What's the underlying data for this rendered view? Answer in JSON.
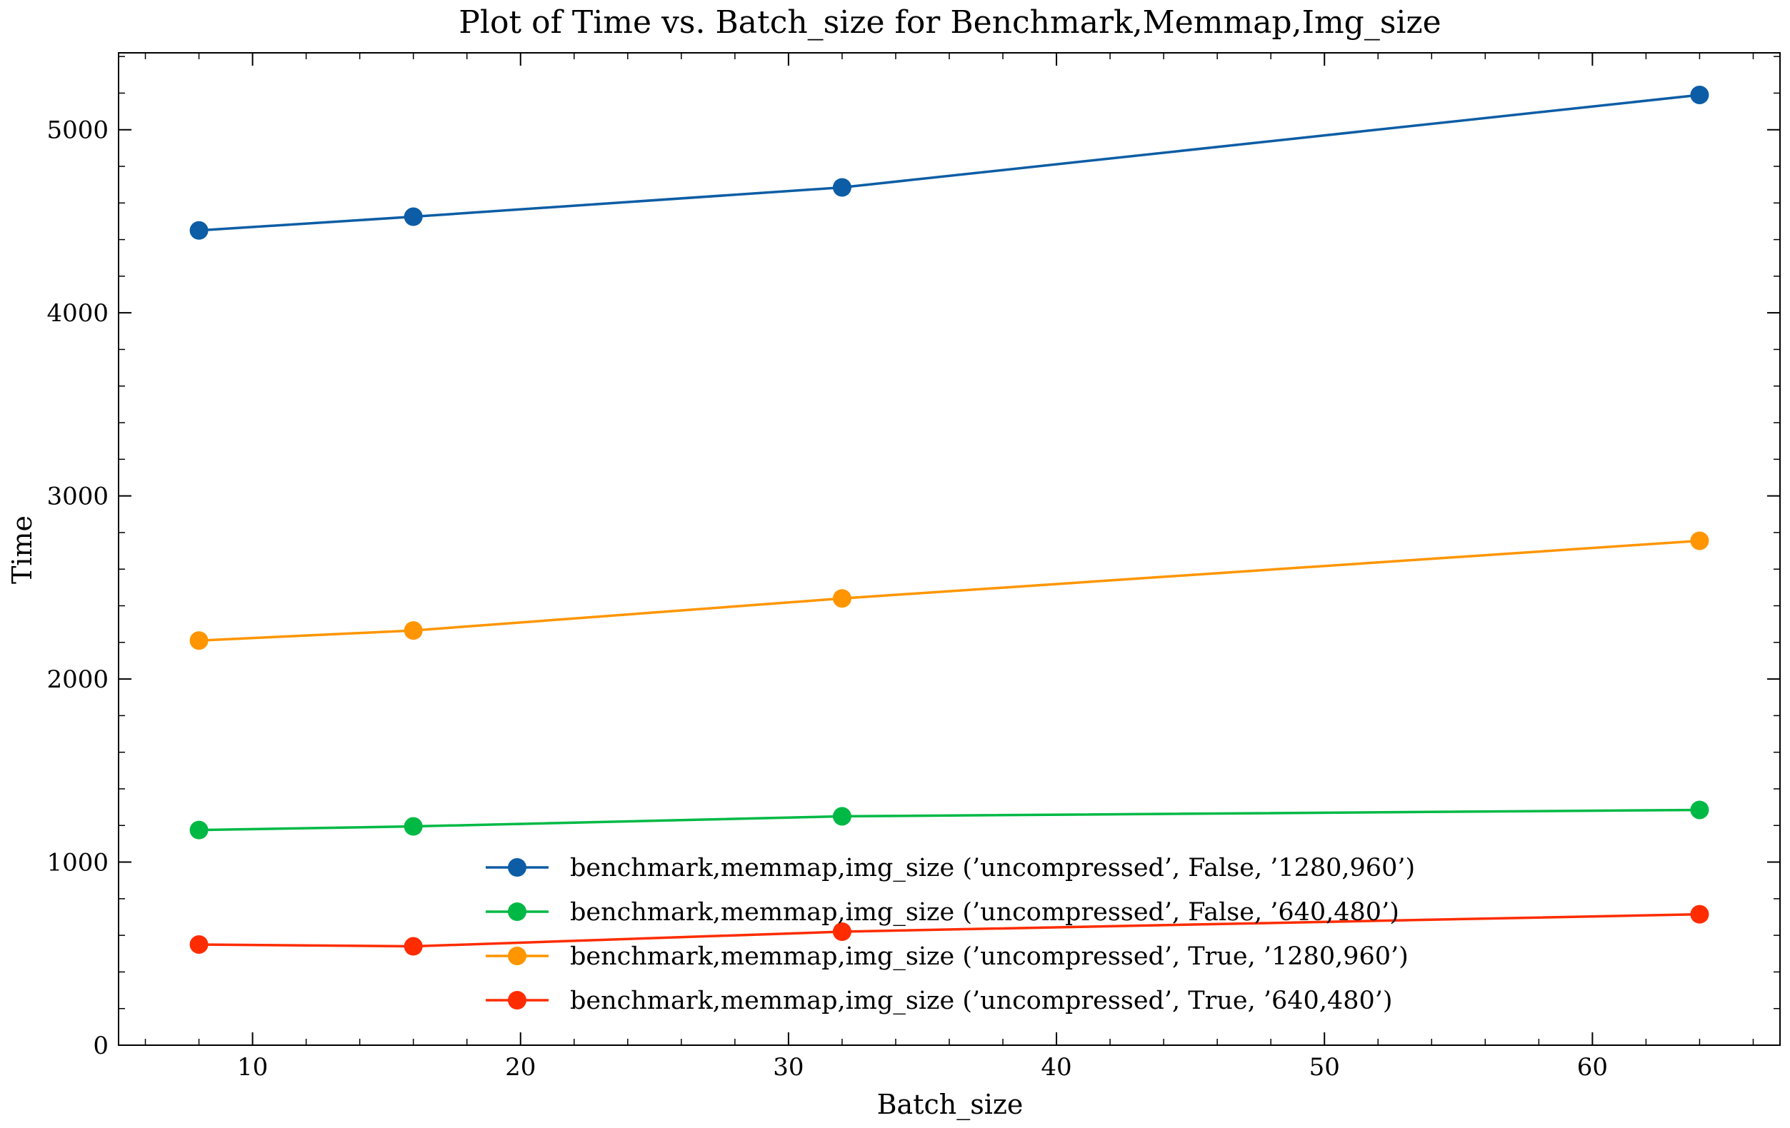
{
  "chart_data": {
    "type": "line",
    "title": "Plot of Time vs. Batch_size for Benchmark,Memmap,Img_size",
    "xlabel": "Batch_size",
    "ylabel": "Time",
    "xlim": [
      5,
      67
    ],
    "ylim": [
      0,
      5420
    ],
    "xticks": [
      10,
      20,
      30,
      40,
      50,
      60
    ],
    "yticks": [
      0,
      1000,
      2000,
      3000,
      4000,
      5000
    ],
    "grid": false,
    "legend_position": "lower-center",
    "x": [
      8,
      16,
      32,
      64
    ],
    "series": [
      {
        "name": "benchmark,memmap,img_size (’uncompressed’, False, ’1280,960’)",
        "color": "#0C5DA5",
        "values": [
          4450,
          4525,
          4685,
          5190
        ]
      },
      {
        "name": "benchmark,memmap,img_size (’uncompressed’, False, ’640,480’)",
        "color": "#00B945",
        "values": [
          1175,
          1195,
          1250,
          1285
        ]
      },
      {
        "name": "benchmark,memmap,img_size (’uncompressed’, True, ’1280,960’)",
        "color": "#FF9500",
        "values": [
          2210,
          2265,
          2440,
          2755
        ]
      },
      {
        "name": "benchmark,memmap,img_size (’uncompressed’, True, ’640,480’)",
        "color": "#FF2C00",
        "values": [
          550,
          540,
          620,
          715
        ]
      }
    ]
  }
}
